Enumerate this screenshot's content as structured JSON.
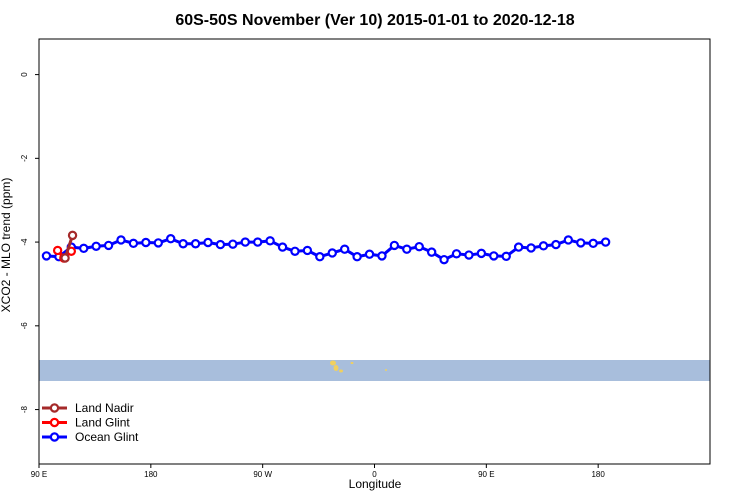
{
  "chart_data": {
    "type": "line",
    "title": "60S-50S November (Ver 10)   2015-01-01 to 2020-12-18",
    "xlabel": "Longitude",
    "ylabel": "XCO2 - MLO trend (ppm)",
    "xlim": [
      -90,
      180
    ],
    "ylim": [
      -9.3,
      0.85
    ],
    "x_ticks": [
      {
        "value": -90,
        "label": "90 E"
      },
      {
        "value": -45,
        "label": "180"
      },
      {
        "value": 0,
        "label": "90 W"
      },
      {
        "value": 45,
        "label": "0"
      },
      {
        "value": 90,
        "label": "90 E"
      },
      {
        "value": 135,
        "label": "180"
      }
    ],
    "y_ticks": [
      0,
      -2,
      -4,
      -6,
      -8
    ],
    "legend": {
      "placement": "bottom-left",
      "entries": [
        {
          "name": "Land Nadir",
          "color": "#a52a2a"
        },
        {
          "name": "Land Glint",
          "color": "#ff0000"
        },
        {
          "name": "Ocean Glint",
          "color": "#0000ff"
        }
      ]
    },
    "series": [
      {
        "name": "Land Nadir",
        "color": "#a52a2a",
        "x": [
          -79.5,
          -76.5
        ],
        "y": [
          -4.38,
          -3.84
        ]
      },
      {
        "name": "Land Glint",
        "color": "#ff0000",
        "x": [
          -82.5,
          -80.0,
          -77.0
        ],
        "y": [
          -4.2,
          -4.38,
          -4.22
        ]
      },
      {
        "name": "Ocean Glint",
        "color": "#0000ff",
        "x": [
          -87,
          -82,
          -77,
          -72,
          -67,
          -62,
          -57,
          -52,
          -47,
          -42,
          -37,
          -32,
          -27,
          -22,
          -17,
          -12,
          -7,
          -2,
          3,
          8,
          13,
          18,
          23,
          28,
          33,
          38,
          43,
          48,
          53,
          58,
          63,
          68,
          73,
          78,
          83,
          88,
          93,
          98,
          103,
          108,
          113,
          118,
          123,
          128,
          133,
          138
        ],
        "y": [
          -4.33,
          -4.35,
          -4.12,
          -4.15,
          -4.1,
          -4.08,
          -3.95,
          -4.03,
          -4.01,
          -4.02,
          -3.92,
          -4.04,
          -4.04,
          -4.01,
          -4.06,
          -4.05,
          -4.0,
          -4.0,
          -3.97,
          -4.12,
          -4.22,
          -4.2,
          -4.35,
          -4.26,
          -4.17,
          -4.35,
          -4.29,
          -4.33,
          -4.08,
          -4.17,
          -4.11,
          -4.24,
          -4.42,
          -4.28,
          -4.31,
          -4.27,
          -4.33,
          -4.34,
          -4.12,
          -4.14,
          -4.09,
          -4.06,
          -3.95,
          -4.02,
          -4.03,
          -4.0
        ]
      }
    ],
    "colors": {
      "land_band": "#a8bedc",
      "land_spots": "#f0d060"
    }
  }
}
